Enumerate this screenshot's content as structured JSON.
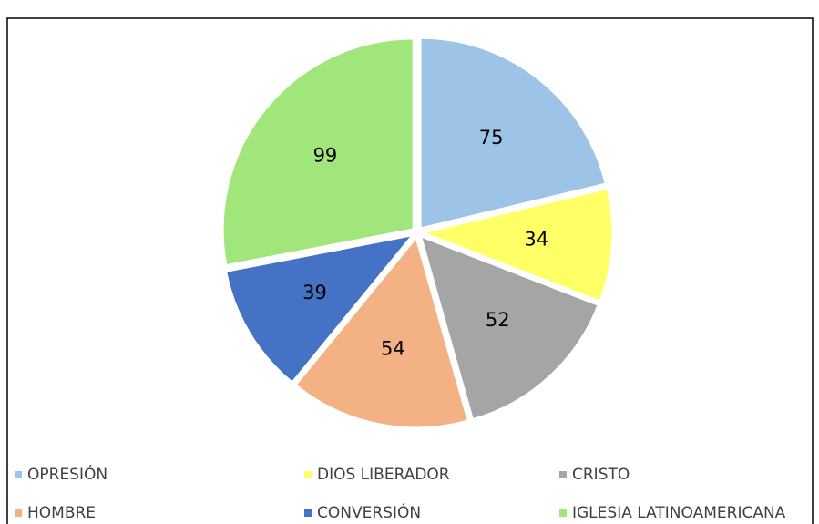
{
  "chart_data": {
    "type": "pie",
    "categories": [
      "OPRESIÓN",
      "DIOS LIBERADOR",
      "CRISTO",
      "HOMBRE",
      "CONVERSIÓN",
      "IGLESIA LATINOAMERICANA"
    ],
    "values": [
      75,
      34,
      52,
      54,
      39,
      99
    ],
    "colors": [
      "#9dc3e6",
      "#ffff66",
      "#a5a5a5",
      "#f4b183",
      "#4472c4",
      "#a0e67a"
    ],
    "legend": "bottom"
  }
}
